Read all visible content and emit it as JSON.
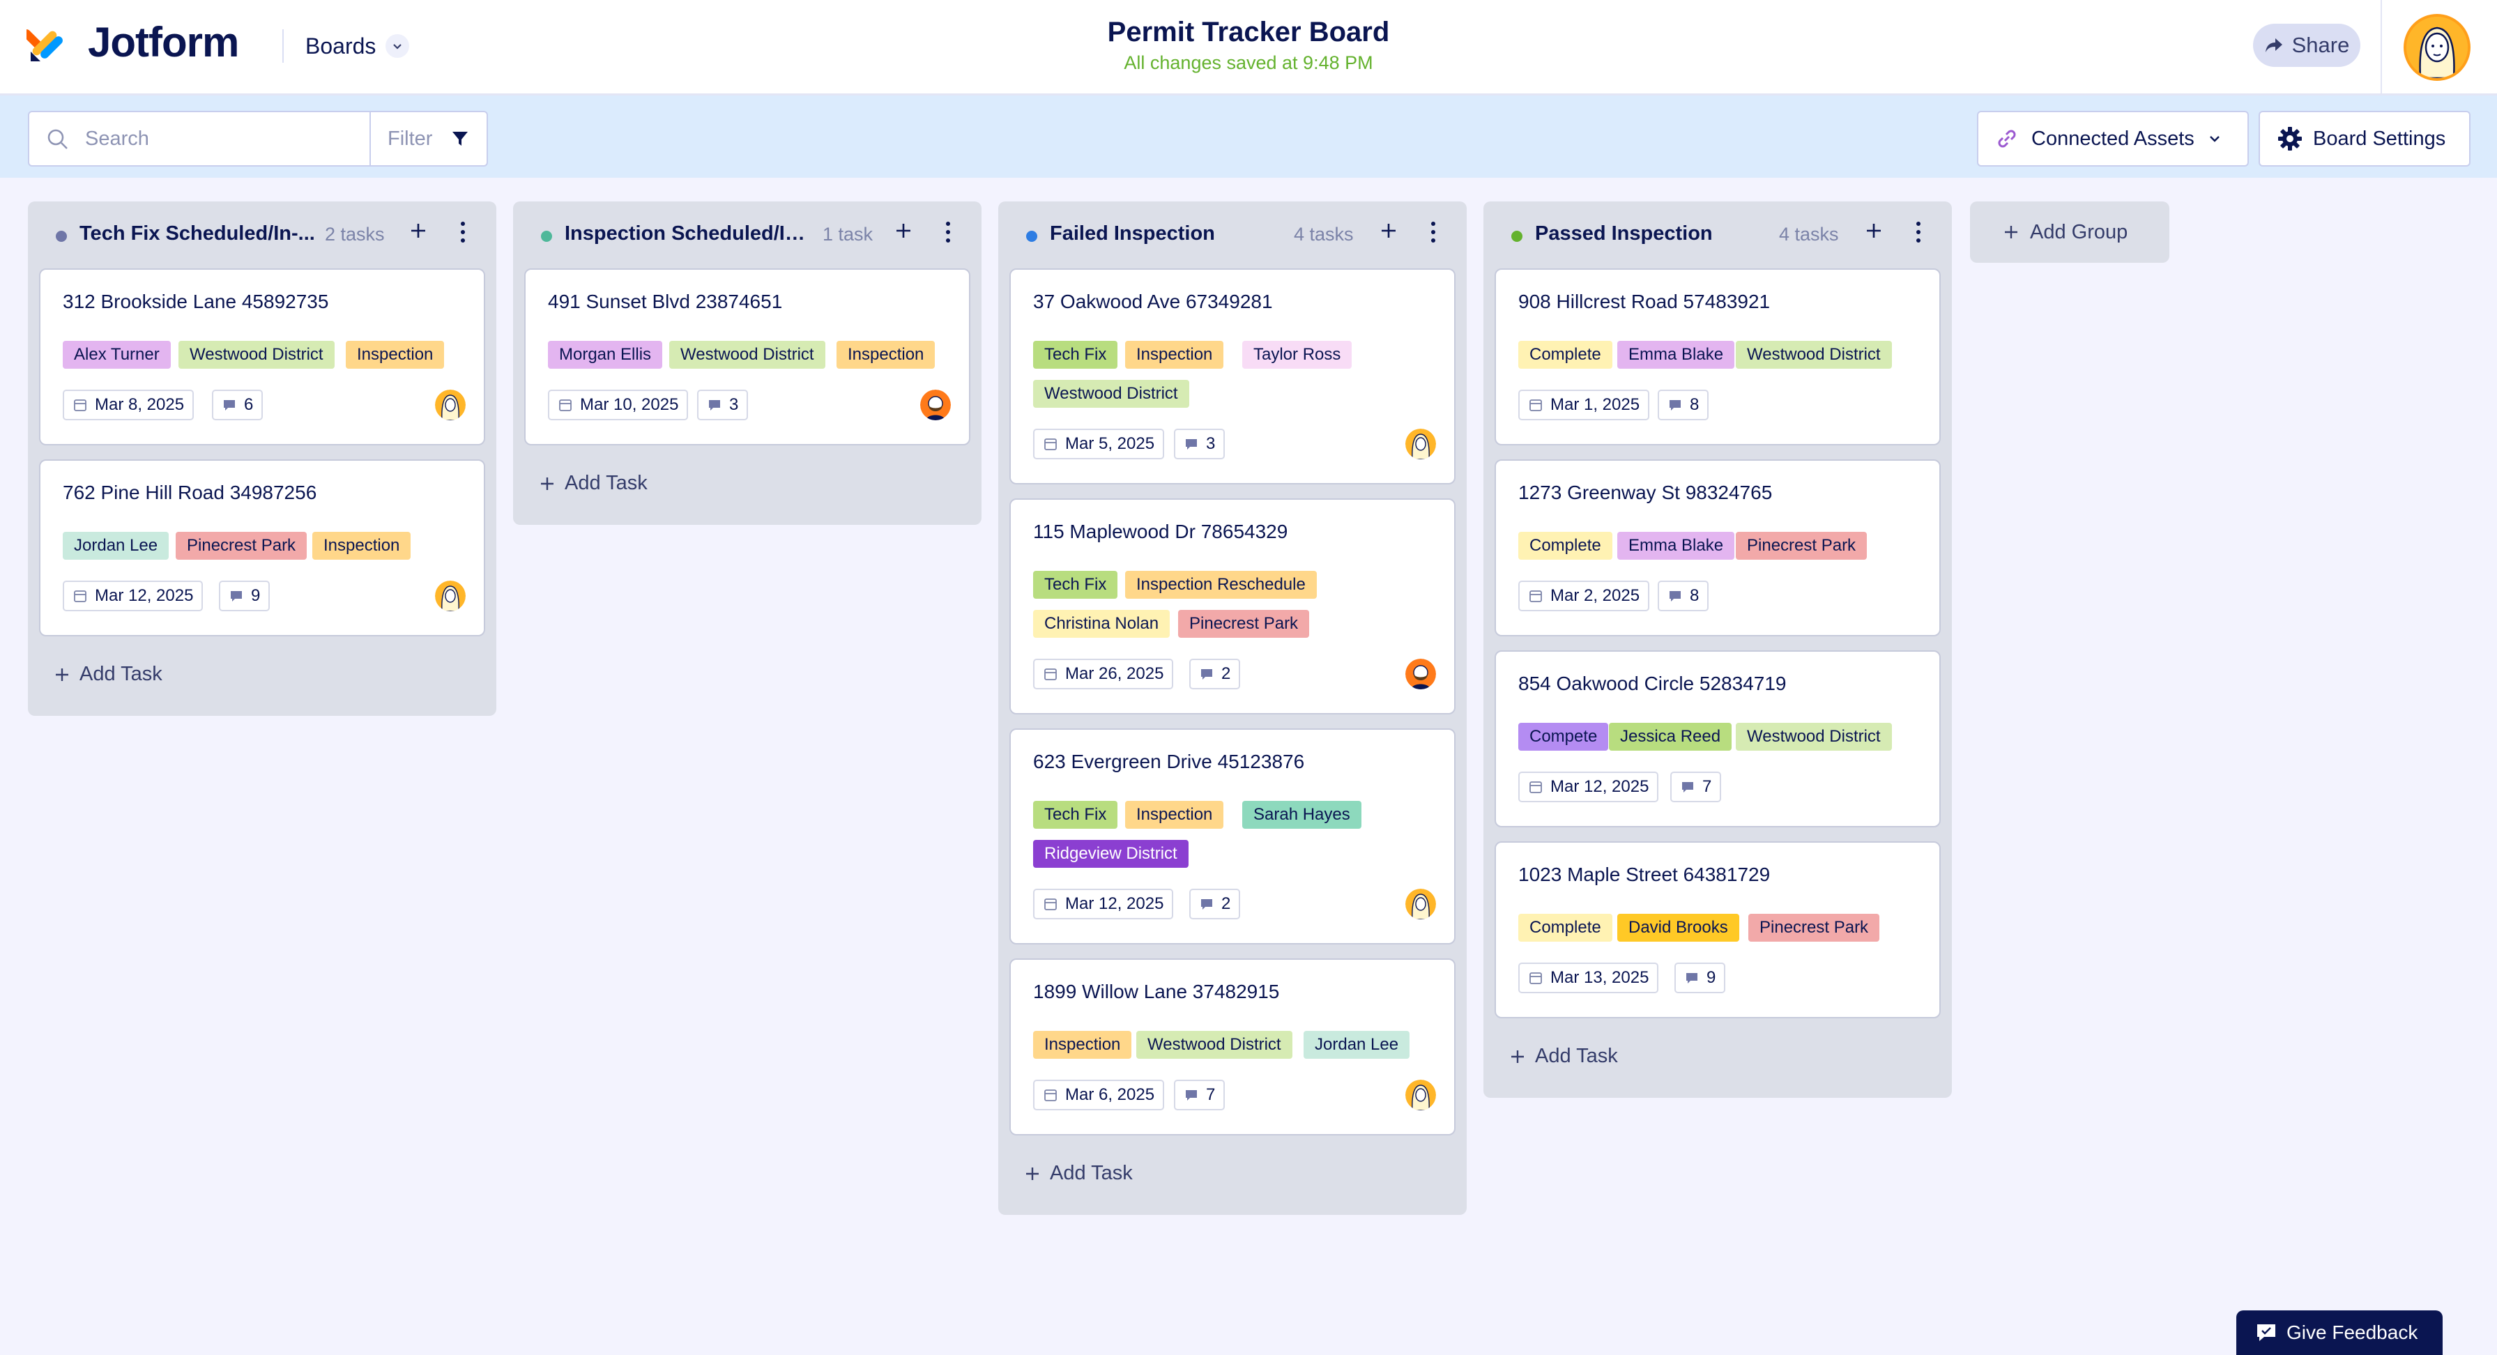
{
  "header": {
    "logo_text": "Jotform",
    "boards_label": "Boards",
    "board_title": "Permit Tracker Board",
    "save_status": "All changes saved at 9:48 PM",
    "share_label": "Share"
  },
  "toolbar": {
    "search_placeholder": "Search",
    "filter_label": "Filter",
    "connected_assets_label": "Connected Assets",
    "board_settings_label": "Board Settings"
  },
  "colors": {
    "accent_navy": "#0a1551",
    "save_green": "#64b22e",
    "tag_purple": "#e3b5f0",
    "tag_green": "#d6ebb3",
    "tag_orange": "#ffd78a",
    "tag_teal": "#c9eade",
    "tag_red": "#f2a9a9",
    "tag_lime": "#b8dd7f",
    "tag_pink": "#f8dcf6",
    "tag_yellow": "#fff2b3",
    "tag_violet": "#b48cf2",
    "tag_deep_violet": "#8b3fd1",
    "tag_seafoam": "#8dd9bd",
    "tag_gold": "#ffc926"
  },
  "columns": [
    {
      "title": "Tech Fix Scheduled/In-...",
      "count": "2 tasks",
      "dot_color": "#6f76a7",
      "add_task_label": "Add Task",
      "cards": [
        {
          "title": "312 Brookside Lane 45892735",
          "tags": [
            "Alex Turner",
            "Westwood District",
            "Inspection"
          ],
          "date": "Mar 8, 2025",
          "comments": "6",
          "avatar": "avatar-yellow-icon"
        },
        {
          "title": "762 Pine Hill Road 34987256",
          "tags": [
            "Jordan Lee",
            "Pinecrest Park",
            "Inspection"
          ],
          "date": "Mar 12, 2025",
          "comments": "9",
          "avatar": "avatar-yellow-icon"
        }
      ]
    },
    {
      "title": "Inspection Scheduled/In...",
      "count": "1 task",
      "dot_color": "#4fb89a",
      "add_task_label": "Add Task",
      "cards": [
        {
          "title": "491 Sunset Blvd 23874651",
          "tags": [
            "Morgan Ellis",
            "Westwood District",
            "Inspection"
          ],
          "date": "Mar 10, 2025",
          "comments": "3",
          "avatar": "avatar-orange-icon"
        }
      ]
    },
    {
      "title": "Failed Inspection",
      "count": "4 tasks",
      "dot_color": "#2e7de3",
      "add_task_label": "Add Task",
      "cards": [
        {
          "title": "37 Oakwood Ave 67349281",
          "tags": [
            "Tech Fix",
            "Inspection",
            "Taylor Ross",
            "Westwood District"
          ],
          "date": "Mar 5, 2025",
          "comments": "3",
          "avatar": "avatar-yellow-icon"
        },
        {
          "title": "115 Maplewood Dr 78654329",
          "tags": [
            "Tech Fix",
            "Inspection Reschedule",
            "Christina Nolan",
            "Pinecrest Park"
          ],
          "date": "Mar 26, 2025",
          "comments": "2",
          "avatar": "avatar-orange-icon"
        },
        {
          "title": "623 Evergreen Drive 45123876",
          "tags": [
            "Tech Fix",
            "Inspection",
            "Sarah Hayes",
            "Ridgeview District"
          ],
          "date": "Mar 12, 2025",
          "comments": "2",
          "avatar": "avatar-yellow-icon"
        },
        {
          "title": "1899 Willow Lane 37482915",
          "tags": [
            "Inspection",
            "Westwood District",
            "Jordan Lee"
          ],
          "date": "Mar 6, 2025",
          "comments": "7",
          "avatar": "avatar-yellow-icon"
        }
      ]
    },
    {
      "title": "Passed Inspection",
      "count": "4 tasks",
      "dot_color": "#64b22e",
      "add_task_label": "Add Task",
      "cards": [
        {
          "title": "908 Hillcrest Road 57483921",
          "tags": [
            "Complete",
            "Emma Blake",
            "Westwood District"
          ],
          "date": "Mar 1, 2025",
          "comments": "8"
        },
        {
          "title": "1273 Greenway St 98324765",
          "tags": [
            "Complete",
            "Emma Blake",
            "Pinecrest Park"
          ],
          "date": "Mar 2, 2025",
          "comments": "8"
        },
        {
          "title": "854 Oakwood Circle 52834719",
          "tags": [
            "Compete",
            "Jessica Reed",
            "Westwood District"
          ],
          "date": "Mar 12, 2025",
          "comments": "7"
        },
        {
          "title": "1023 Maple Street 64381729",
          "tags": [
            "Complete",
            "David Brooks",
            "Pinecrest Park"
          ],
          "date": "Mar 13, 2025",
          "comments": "9"
        }
      ]
    }
  ],
  "add_group_label": "Add Group",
  "feedback_label": "Give Feedback"
}
